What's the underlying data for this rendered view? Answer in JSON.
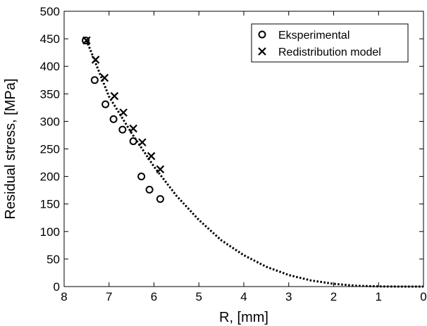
{
  "chart_data": {
    "type": "scatter",
    "title": "",
    "xlabel": "R, [mm]",
    "ylabel": "Residual stress, [MPa]",
    "xlim": [
      8,
      0
    ],
    "ylim": [
      0,
      500
    ],
    "x_reversed": true,
    "xticks": [
      8,
      7,
      6,
      5,
      4,
      3,
      2,
      1,
      0
    ],
    "yticks": [
      0,
      50,
      100,
      150,
      200,
      250,
      300,
      350,
      400,
      450,
      500
    ],
    "grid": false,
    "legend_position": "top-right",
    "series": [
      {
        "name": "Eksperimental",
        "marker": "circle",
        "color": "#000000",
        "x": [
          7.52,
          7.32,
          7.08,
          6.9,
          6.7,
          6.46,
          6.28,
          6.1,
          5.86
        ],
        "y": [
          447,
          375,
          331,
          304,
          285,
          264,
          200,
          176,
          159
        ]
      },
      {
        "name": "Redistribution model",
        "marker": "x",
        "color": "#000000",
        "x": [
          7.5,
          7.3,
          7.1,
          6.88,
          6.68,
          6.46,
          6.26,
          6.06,
          5.86
        ],
        "y": [
          447,
          412,
          379,
          346,
          316,
          287,
          262,
          237,
          213
        ]
      },
      {
        "name": "",
        "marker": "none",
        "line": "dotted",
        "color": "#000000",
        "x": [
          7.5,
          7.0,
          6.5,
          6.0,
          5.5,
          5.0,
          4.5,
          4.0,
          3.5,
          3.0,
          2.5,
          2.0,
          1.5,
          1.0,
          0.5,
          0.0
        ],
        "y": [
          447,
          345,
          279,
          218,
          165,
          121,
          84,
          57,
          36,
          21,
          11,
          5,
          1.5,
          0.3,
          0,
          0
        ]
      }
    ]
  }
}
